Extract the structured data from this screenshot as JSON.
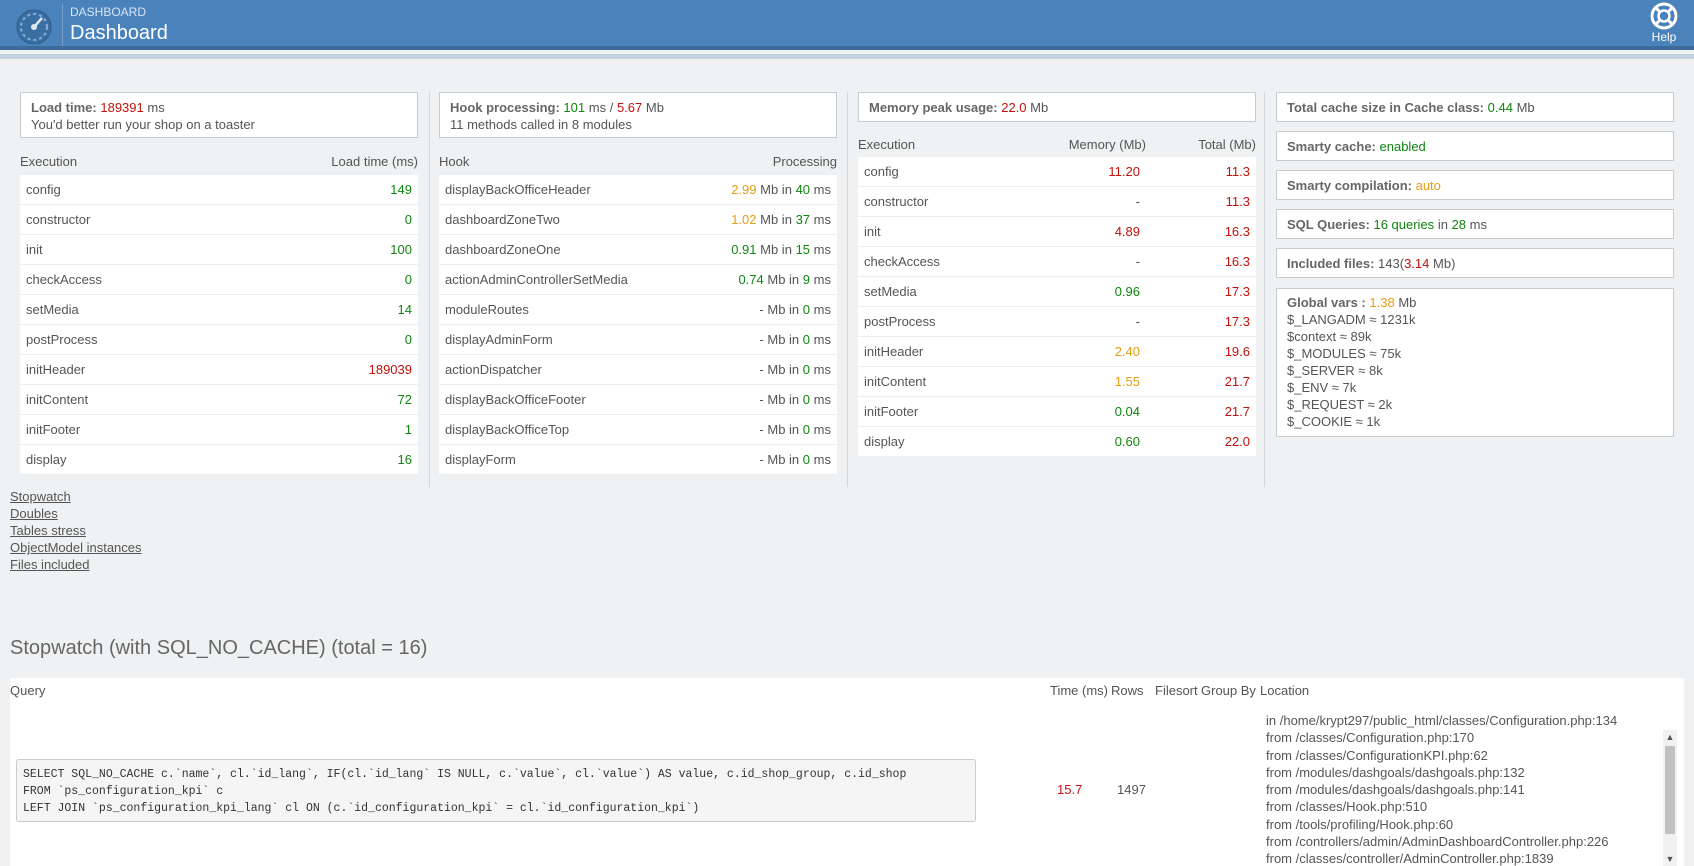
{
  "header": {
    "breadcrumb": "DASHBOARD",
    "title": "Dashboard",
    "help_label": "Help"
  },
  "load_box": {
    "label": "Load time:",
    "value": "189391",
    "unit": "ms",
    "note": "You'd better run your shop on a toaster"
  },
  "hook_box": {
    "label": "Hook processing:",
    "ms": "101",
    "ms_unit": "ms /",
    "mb": "5.67",
    "mb_unit": "Mb",
    "note": "11 methods called in 8 modules"
  },
  "memory_box": {
    "label": "Memory peak usage:",
    "value": "22.0",
    "unit": "Mb"
  },
  "execution_table": {
    "col1": "Execution",
    "col2": "Load time (ms)",
    "rows": [
      {
        "name": "config",
        "value": "149",
        "color": "#108510"
      },
      {
        "name": "constructor",
        "value": "0",
        "color": "#108510"
      },
      {
        "name": "init",
        "value": "100",
        "color": "#108510"
      },
      {
        "name": "checkAccess",
        "value": "0",
        "color": "#108510"
      },
      {
        "name": "setMedia",
        "value": "14",
        "color": "#108510"
      },
      {
        "name": "postProcess",
        "value": "0",
        "color": "#108510"
      },
      {
        "name": "initHeader",
        "value": "189039",
        "color": "#c3110b"
      },
      {
        "name": "initContent",
        "value": "72",
        "color": "#108510"
      },
      {
        "name": "initFooter",
        "value": "1",
        "color": "#108510"
      },
      {
        "name": "display",
        "value": "16",
        "color": "#108510"
      }
    ]
  },
  "hook_table": {
    "col1": "Hook",
    "col2": "Processing",
    "rows": [
      {
        "name": "displayBackOfficeHeader",
        "mb": "2.99",
        "mb_color": "#e59d11",
        "ms": "40"
      },
      {
        "name": "dashboardZoneTwo",
        "mb": "1.02",
        "mb_color": "#e59d11",
        "ms": "37"
      },
      {
        "name": "dashboardZoneOne",
        "mb": "0.91",
        "mb_color": "#108510",
        "ms": "15"
      },
      {
        "name": "actionAdminControllerSetMedia",
        "mb": "0.74",
        "mb_color": "#108510",
        "ms": "9"
      },
      {
        "name": "moduleRoutes",
        "mb": "-",
        "mb_color": "#555555",
        "ms": "0"
      },
      {
        "name": "displayAdminForm",
        "mb": "-",
        "mb_color": "#555555",
        "ms": "0"
      },
      {
        "name": "actionDispatcher",
        "mb": "-",
        "mb_color": "#555555",
        "ms": "0"
      },
      {
        "name": "displayBackOfficeFooter",
        "mb": "-",
        "mb_color": "#555555",
        "ms": "0"
      },
      {
        "name": "displayBackOfficeTop",
        "mb": "-",
        "mb_color": "#555555",
        "ms": "0"
      },
      {
        "name": "displayForm",
        "mb": "-",
        "mb_color": "#555555",
        "ms": "0"
      }
    ],
    "mb_word": "Mb in",
    "ms_word": "ms"
  },
  "memory_table": {
    "col1": "Execution",
    "col2": "Memory (Mb)",
    "col3": "Total (Mb)",
    "rows": [
      {
        "name": "config",
        "mem": "11.20",
        "mem_color": "#c3110b",
        "total": "11.3"
      },
      {
        "name": "constructor",
        "mem": "-",
        "mem_color": "#555555",
        "total": "11.3"
      },
      {
        "name": "init",
        "mem": "4.89",
        "mem_color": "#c3110b",
        "total": "16.3"
      },
      {
        "name": "checkAccess",
        "mem": "-",
        "mem_color": "#555555",
        "total": "16.3"
      },
      {
        "name": "setMedia",
        "mem": "0.96",
        "mem_color": "#108510",
        "total": "17.3"
      },
      {
        "name": "postProcess",
        "mem": "-",
        "mem_color": "#555555",
        "total": "17.3"
      },
      {
        "name": "initHeader",
        "mem": "2.40",
        "mem_color": "#e59d11",
        "total": "19.6"
      },
      {
        "name": "initContent",
        "mem": "1.55",
        "mem_color": "#e59d11",
        "total": "21.7"
      },
      {
        "name": "initFooter",
        "mem": "0.04",
        "mem_color": "#108510",
        "total": "21.7"
      },
      {
        "name": "display",
        "mem": "0.60",
        "mem_color": "#108510",
        "total": "22.0"
      }
    ]
  },
  "cache": {
    "total": {
      "label": "Total cache size in Cache class:",
      "value": "0.44",
      "unit": "Mb"
    },
    "smarty_cache": {
      "label": "Smarty cache:",
      "value": "enabled"
    },
    "smarty_compilation": {
      "label": "Smarty compilation:",
      "value": "auto"
    },
    "sql": {
      "label": "SQL Queries:",
      "count": "16 queries",
      "mid": "in",
      "ms": "28",
      "unit": "ms"
    },
    "files": {
      "label": "Included files:",
      "count": "143",
      "open": "(",
      "mb": "3.14",
      "close": "Mb)"
    }
  },
  "global_vars": {
    "label": "Global vars :",
    "value": "1.38",
    "unit": "Mb",
    "items": [
      "$_LANGADM ≈ 1231k",
      "$context ≈ 89k",
      "$_MODULES ≈ 75k",
      "$_SERVER ≈ 8k",
      "$_ENV ≈ 7k",
      "$_REQUEST ≈ 2k",
      "$_COOKIE ≈ 1k"
    ]
  },
  "links": [
    "Stopwatch",
    "Doubles",
    "Tables stress",
    "ObjectModel instances",
    "Files included"
  ],
  "stopwatch": {
    "title": "Stopwatch (with SQL_NO_CACHE) (total = 16)",
    "headers": {
      "query": "Query",
      "time": "Time (ms)",
      "rows": "Rows",
      "filesort": "Filesort",
      "groupby": "Group By",
      "location": "Location"
    },
    "query": "SELECT SQL_NO_CACHE c.`name`, cl.`id_lang`, IF(cl.`id_lang` IS NULL, c.`value`, cl.`value`) AS value, c.id_shop_group, c.id_shop\nFROM `ps_configuration_kpi` c\nLEFT JOIN `ps_configuration_kpi_lang` cl ON (c.`id_configuration_kpi` = cl.`id_configuration_kpi`)",
    "time": "15.7",
    "rows": "1497",
    "location": [
      "in /home/krypt297/public_html/classes/Configuration.php:134",
      "from /classes/Configuration.php:170",
      "from /classes/ConfigurationKPI.php:62",
      "from /modules/dashgoals/dashgoals.php:132",
      "from /modules/dashgoals/dashgoals.php:141",
      "from /classes/Hook.php:510",
      "from /tools/profiling/Hook.php:60",
      "from /controllers/admin/AdminDashboardController.php:226",
      "from /classes/controller/AdminController.php:1839"
    ]
  }
}
